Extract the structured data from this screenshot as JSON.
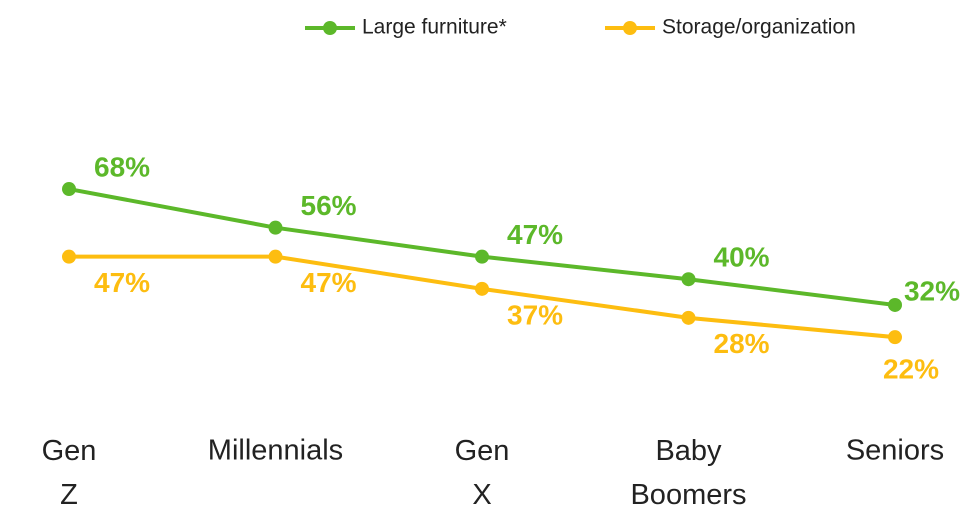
{
  "chart_data": {
    "type": "line",
    "categories": [
      "Gen Z",
      "Millennials",
      "Gen X",
      "Baby Boomers",
      "Seniors"
    ],
    "series": [
      {
        "name": "Large furniture*",
        "color": "#5cb82a",
        "values": [
          68,
          56,
          47,
          40,
          32
        ],
        "value_labels": [
          "68%",
          "56%",
          "47%",
          "40%",
          "32%"
        ]
      },
      {
        "name": "Storage/organization",
        "color": "#fdbd10",
        "values": [
          47,
          47,
          37,
          28,
          22
        ],
        "value_labels": [
          "47%",
          "47%",
          "37%",
          "28%",
          "22%"
        ]
      }
    ]
  }
}
